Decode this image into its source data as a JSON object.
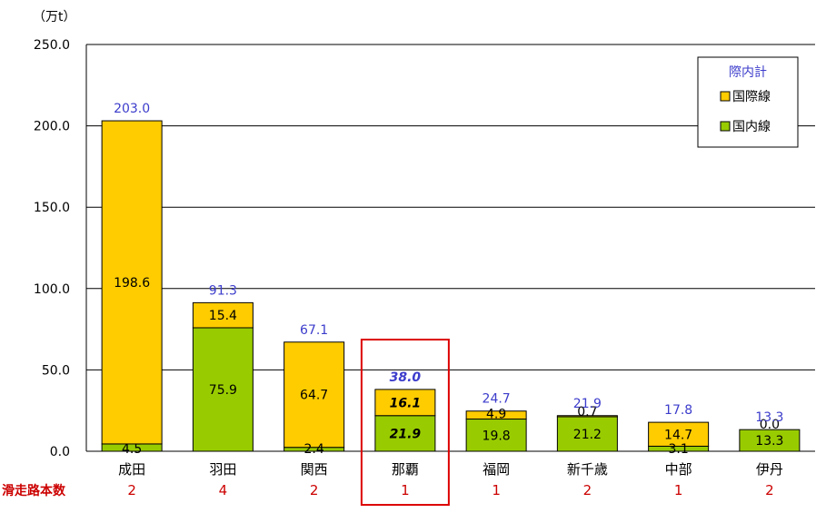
{
  "chart_data": {
    "type": "bar",
    "stacked": true,
    "unit": "（万t）",
    "categories": [
      "成田",
      "羽田",
      "関西",
      "那覇",
      "福岡",
      "新千歳",
      "中部",
      "伊丹"
    ],
    "series": [
      {
        "name": "国内線",
        "color": "#99cc00",
        "values": [
          4.5,
          75.9,
          2.4,
          21.9,
          19.8,
          21.2,
          3.1,
          13.3
        ]
      },
      {
        "name": "国際線",
        "color": "#ffcc00",
        "values": [
          198.6,
          15.4,
          64.7,
          16.1,
          4.9,
          0.7,
          14.7,
          0.0
        ]
      }
    ],
    "totals_name": "際内計",
    "totals": [
      "203.0",
      "91.3",
      "67.1",
      "38.0",
      "24.7",
      "21.9",
      "17.8",
      "13.3"
    ],
    "segment_labels": {
      "domestic": [
        "4.5",
        "75.9",
        "2.4",
        "21.9",
        "19.8",
        "21.2",
        "3.1",
        "13.3"
      ],
      "international": [
        "198.6",
        "15.4",
        "64.7",
        "16.1",
        "4.9",
        "0.7",
        "14.7",
        "0.0"
      ]
    },
    "ylim": [
      0,
      250
    ],
    "yticks": [
      "0.0",
      "50.0",
      "100.0",
      "150.0",
      "200.0",
      "250.0"
    ],
    "grid": true,
    "legend_position": "top-right",
    "highlight_category": "那覇",
    "highlight_color": "#dd0000",
    "runway_title": "滑走路本数",
    "runways": [
      "2",
      "4",
      "2",
      "1",
      "1",
      "2",
      "1",
      "2"
    ]
  }
}
